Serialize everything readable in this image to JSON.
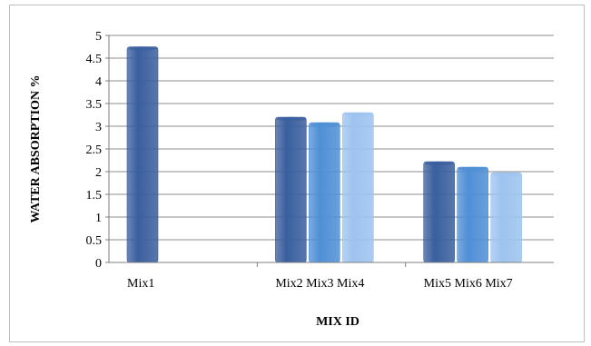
{
  "chart_data": {
    "type": "bar",
    "title": "",
    "xlabel": "MIX ID",
    "ylabel": "WATER ABSORPTION %",
    "ylim": [
      0,
      5
    ],
    "yticks": [
      "0",
      "0.5",
      "1",
      "1.5",
      "2",
      "2.5",
      "3",
      "3.5",
      "4",
      "4.5",
      "5"
    ],
    "grid": true,
    "legend": "none",
    "groups": [
      {
        "label": "Mix1",
        "bars": [
          {
            "name": "Mix1",
            "value": 4.75
          }
        ]
      },
      {
        "label": "Mix2 Mix3 Mix4",
        "bars": [
          {
            "name": "Mix2",
            "value": 3.2
          },
          {
            "name": "Mix3",
            "value": 3.08
          },
          {
            "name": "Mix4",
            "value": 3.3
          }
        ]
      },
      {
        "label": "Mix5 Mix6 Mix7",
        "bars": [
          {
            "name": "Mix5",
            "value": 2.22
          },
          {
            "name": "Mix6",
            "value": 2.1
          },
          {
            "name": "Mix7",
            "value": 1.98
          }
        ]
      }
    ],
    "colors": {
      "shade1": "#3a5f9e",
      "shade2": "#4f8fd6",
      "shade3": "#9dc3ef",
      "grid": "#8c8c8c",
      "axis": "#7f7f7f"
    }
  }
}
